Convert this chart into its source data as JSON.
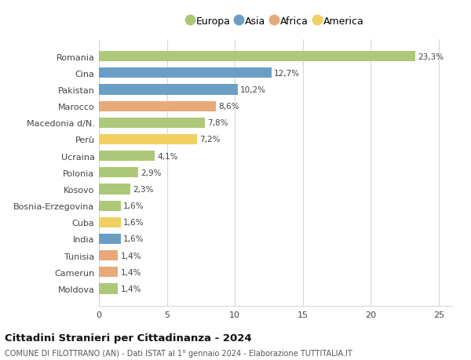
{
  "categories": [
    "Romania",
    "Cina",
    "Pakistan",
    "Marocco",
    "Macedonia d/N.",
    "Perù",
    "Ucraina",
    "Polonia",
    "Kosovo",
    "Bosnia-Erzegovina",
    "Cuba",
    "India",
    "Tunisia",
    "Camerun",
    "Moldova"
  ],
  "values": [
    23.3,
    12.7,
    10.2,
    8.6,
    7.8,
    7.2,
    4.1,
    2.9,
    2.3,
    1.6,
    1.6,
    1.6,
    1.4,
    1.4,
    1.4
  ],
  "labels": [
    "23,3%",
    "12,7%",
    "10,2%",
    "8,6%",
    "7,8%",
    "7,2%",
    "4,1%",
    "2,9%",
    "2,3%",
    "1,6%",
    "1,6%",
    "1,6%",
    "1,4%",
    "1,4%",
    "1,4%"
  ],
  "continents": [
    "Europa",
    "Asia",
    "Asia",
    "Africa",
    "Europa",
    "America",
    "Europa",
    "Europa",
    "Europa",
    "Europa",
    "America",
    "Asia",
    "Africa",
    "Africa",
    "Europa"
  ],
  "colors": {
    "Europa": "#adc878",
    "Asia": "#6a9ec5",
    "Africa": "#e8a97a",
    "America": "#f0d060"
  },
  "legend_order": [
    "Europa",
    "Asia",
    "Africa",
    "America"
  ],
  "xlim": [
    0,
    26
  ],
  "xticks": [
    0,
    5,
    10,
    15,
    20,
    25
  ],
  "title": "Cittadini Stranieri per Cittadinanza - 2024",
  "subtitle": "COMUNE DI FILOTTRANO (AN) - Dati ISTAT al 1° gennaio 2024 - Elaborazione TUTTITALIA.IT",
  "background_color": "#ffffff",
  "grid_color": "#d8d8d8",
  "bar_height": 0.62
}
